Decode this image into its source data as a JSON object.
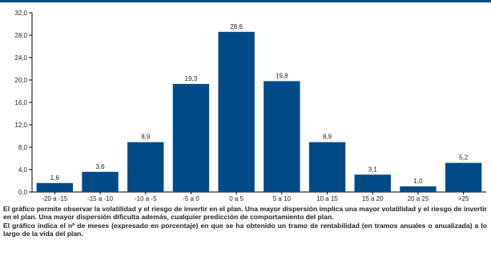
{
  "theme": {
    "bar_color": "#004b87",
    "axis_color": "#000000",
    "text_color": "#222222"
  },
  "chart_data": {
    "type": "bar",
    "title": "",
    "xlabel": "",
    "ylabel": "",
    "categories": [
      "-20 a -15",
      "-15 a -10",
      "-10 a -5",
      "-5 a 0",
      "0 a 5",
      "5 a 10",
      "10 a 15",
      "15 a 20",
      "20 a 25",
      ">25"
    ],
    "values": [
      1.6,
      3.6,
      8.9,
      19.3,
      28.6,
      19.8,
      8.9,
      3.1,
      1.0,
      5.2
    ],
    "value_labels": [
      "1,6",
      "3,6",
      "8,9",
      "19,3",
      "28,6",
      "19,8",
      "8,9",
      "3,1",
      "1,0",
      "5,2"
    ],
    "ylim": [
      0,
      32
    ],
    "yticks": [
      0,
      4,
      8,
      12,
      16,
      20,
      24,
      28,
      32
    ],
    "ytick_labels": [
      "0,0",
      "4,0",
      "8,0",
      "12,0",
      "16,0",
      "20,0",
      "24,0",
      "28,0",
      "32,0"
    ],
    "grid": false,
    "legend": "none"
  },
  "caption": {
    "p1": "El gráfico permite observar la volatilidad y el riesgo de invertir en el plan. Una mayor dispersión implica una mayor volatilidad y el riesgo de invertir en el plan. Una mayor dispersión dificulta además, cualquier predicción de comportamiento del plan.",
    "p2": "El gráfico indica el nº de meses (expresado en porcentaje) en que se ha obtenido un tramo de rentabilidad (en tramos anuales o anualizada) a lo largo de la vida del plan."
  }
}
